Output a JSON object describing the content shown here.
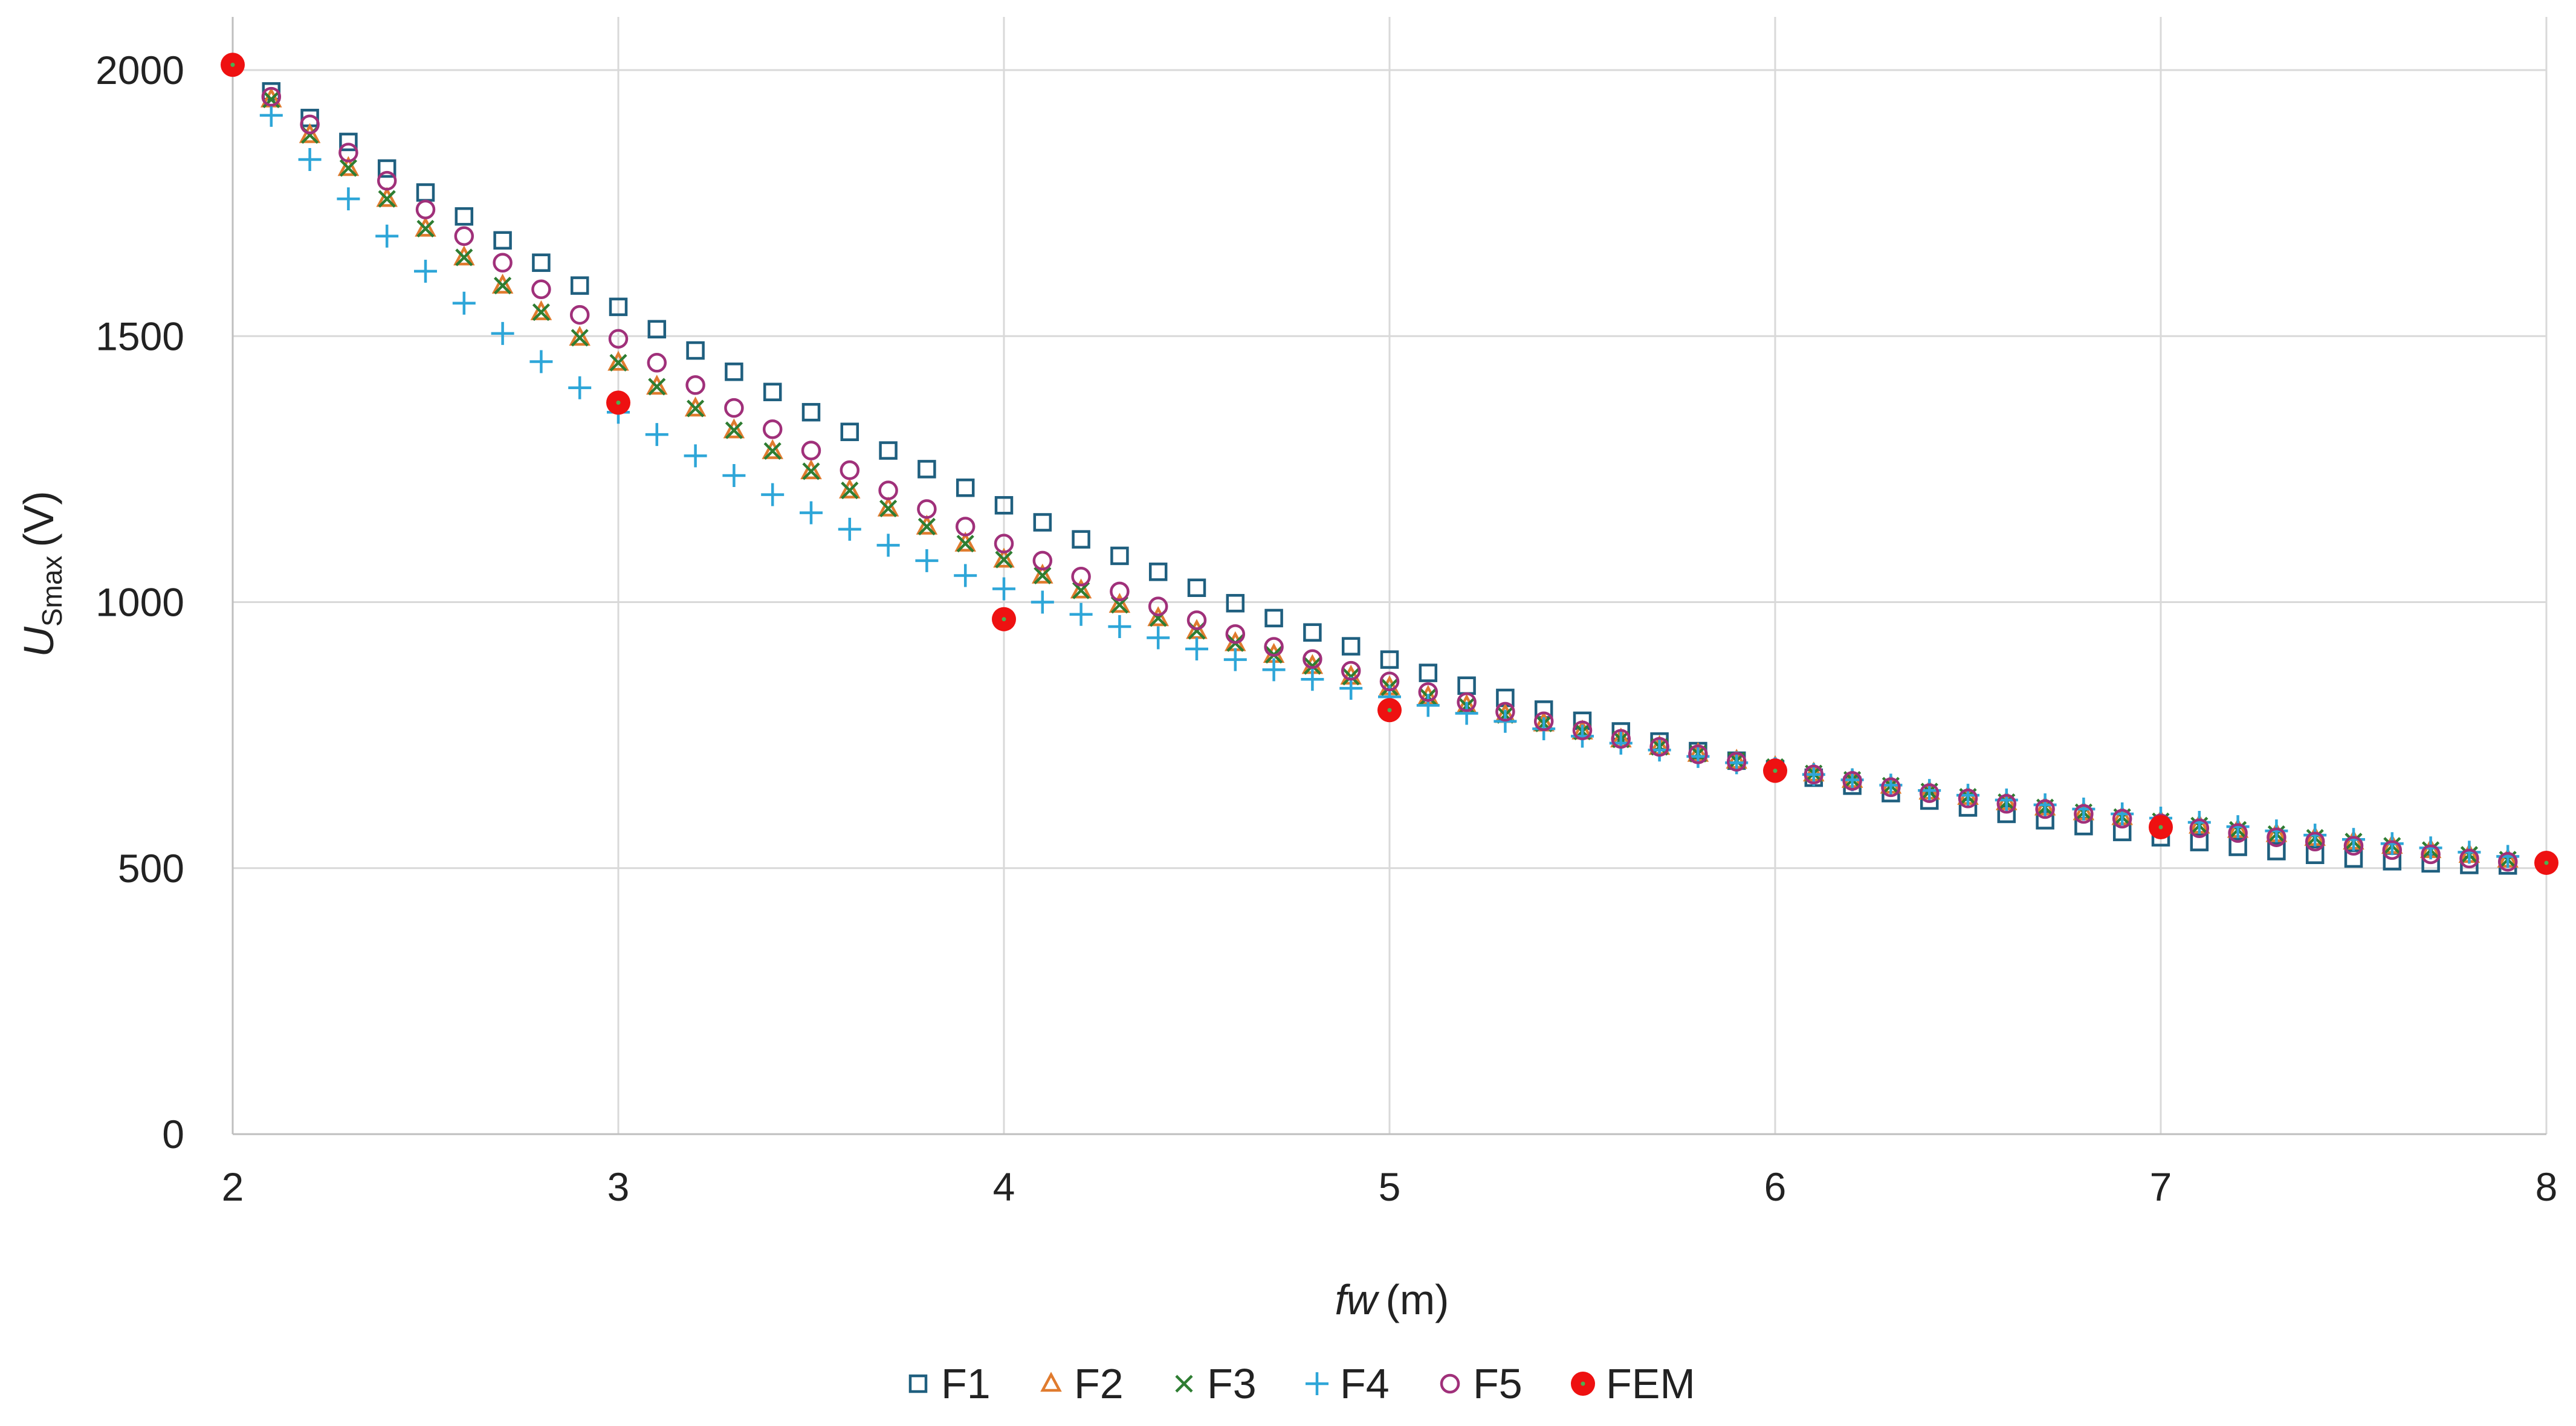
{
  "chart_data": {
    "type": "scatter",
    "title": "",
    "xlabel": {
      "italic": "fw",
      "unit": "(m)"
    },
    "ylabel": {
      "italic": "U",
      "sub": "Smax",
      "unit": "(V)"
    },
    "xlim": [
      2,
      8
    ],
    "ylim": [
      0,
      2100
    ],
    "xticks": [
      2,
      3,
      4,
      5,
      6,
      7,
      8
    ],
    "yticks": [
      0,
      500,
      1000,
      1500,
      2000
    ],
    "grid": true,
    "legend_position": "bottom",
    "colors": {
      "F1": "#1f5f7f",
      "F2": "#e07b2e",
      "F3": "#2e7d32",
      "F4": "#2ea6d8",
      "F5": "#a0307a",
      "FEM": "#ee1111",
      "FEM_center": "#4caf50",
      "grid": "#d9d9d9",
      "axis": "#bfbfbf"
    },
    "series": [
      {
        "name": "F1",
        "marker": "square",
        "x": [
          2.1,
          2.2,
          2.3,
          2.4,
          2.5,
          2.6,
          2.7,
          2.8,
          2.9,
          3.0,
          3.1,
          3.2,
          3.3,
          3.4,
          3.5,
          3.6,
          3.7,
          3.8,
          3.9,
          4.0,
          4.1,
          4.2,
          4.3,
          4.4,
          4.5,
          4.6,
          4.7,
          4.8,
          4.9,
          5.0,
          5.1,
          5.2,
          5.3,
          5.4,
          5.5,
          5.6,
          5.7,
          5.8,
          5.9,
          6.0,
          6.1,
          6.2,
          6.3,
          6.4,
          6.5,
          6.6,
          6.7,
          6.8,
          6.9,
          7.0,
          7.1,
          7.2,
          7.3,
          7.4,
          7.5,
          7.6,
          7.7,
          7.8,
          7.9
        ],
        "y": [
          1960,
          1910,
          1865,
          1815,
          1770,
          1725,
          1680,
          1638,
          1595,
          1555,
          1513,
          1473,
          1433,
          1395,
          1357,
          1320,
          1285,
          1250,
          1215,
          1182,
          1150,
          1118,
          1087,
          1057,
          1027,
          998,
          970,
          943,
          917,
          892,
          867,
          843,
          820,
          798,
          777,
          757,
          738,
          720,
          702,
          686,
          670,
          655,
          641,
          627,
          614,
          602,
          590,
          579,
          568,
          558,
          549,
          540,
          532,
          525,
          518,
          513,
          509,
          506,
          505
        ]
      },
      {
        "name": "F2",
        "marker": "triangle",
        "x": [
          2.1,
          2.2,
          2.3,
          2.4,
          2.5,
          2.6,
          2.7,
          2.8,
          2.9,
          3.0,
          3.1,
          3.2,
          3.3,
          3.4,
          3.5,
          3.6,
          3.7,
          3.8,
          3.9,
          4.0,
          4.1,
          4.2,
          4.3,
          4.4,
          4.5,
          4.6,
          4.7,
          4.8,
          4.9,
          5.0,
          5.1,
          5.2,
          5.3,
          5.4,
          5.5,
          5.6,
          5.7,
          5.8,
          5.9,
          6.0,
          6.1,
          6.2,
          6.3,
          6.4,
          6.5,
          6.6,
          6.7,
          6.8,
          6.9,
          7.0,
          7.1,
          7.2,
          7.3,
          7.4,
          7.5,
          7.6,
          7.7,
          7.8,
          7.9
        ],
        "y": [
          1945,
          1878,
          1816,
          1758,
          1702,
          1648,
          1595,
          1545,
          1497,
          1450,
          1405,
          1364,
          1323,
          1284,
          1246,
          1210,
          1176,
          1142,
          1110,
          1080,
          1050,
          1022,
          995,
          970,
          946,
          923,
          901,
          880,
          860,
          840,
          822,
          805,
          788,
          772,
          757,
          742,
          728,
          715,
          702,
          690,
          678,
          666,
          655,
          644,
          634,
          624,
          614,
          605,
          596,
          588,
          580,
          572,
          564,
          557,
          550,
          542,
          534,
          525,
          516
        ]
      },
      {
        "name": "F3",
        "marker": "x",
        "x": [
          2.1,
          2.2,
          2.3,
          2.4,
          2.5,
          2.6,
          2.7,
          2.8,
          2.9,
          3.0,
          3.1,
          3.2,
          3.3,
          3.4,
          3.5,
          3.6,
          3.7,
          3.8,
          3.9,
          4.0,
          4.1,
          4.2,
          4.3,
          4.4,
          4.5,
          4.6,
          4.7,
          4.8,
          4.9,
          5.0,
          5.1,
          5.2,
          5.3,
          5.4,
          5.5,
          5.6,
          5.7,
          5.8,
          5.9,
          6.0,
          6.1,
          6.2,
          6.3,
          6.4,
          6.5,
          6.6,
          6.7,
          6.8,
          6.9,
          7.0,
          7.1,
          7.2,
          7.3,
          7.4,
          7.5,
          7.6,
          7.7,
          7.8,
          7.9
        ],
        "y": [
          1945,
          1878,
          1816,
          1758,
          1702,
          1648,
          1595,
          1545,
          1497,
          1450,
          1405,
          1364,
          1323,
          1284,
          1246,
          1210,
          1176,
          1142,
          1110,
          1080,
          1050,
          1022,
          995,
          970,
          946,
          923,
          901,
          880,
          860,
          840,
          822,
          805,
          788,
          772,
          757,
          742,
          728,
          715,
          702,
          690,
          678,
          666,
          655,
          644,
          634,
          624,
          614,
          605,
          596,
          588,
          580,
          572,
          564,
          557,
          550,
          542,
          534,
          525,
          516
        ]
      },
      {
        "name": "F4",
        "marker": "plus",
        "x": [
          2.1,
          2.2,
          2.3,
          2.4,
          2.5,
          2.6,
          2.7,
          2.8,
          2.9,
          3.0,
          3.1,
          3.2,
          3.3,
          3.4,
          3.5,
          3.6,
          3.7,
          3.8,
          3.9,
          4.0,
          4.1,
          4.2,
          4.3,
          4.4,
          4.5,
          4.6,
          4.7,
          4.8,
          4.9,
          5.0,
          5.1,
          5.2,
          5.3,
          5.4,
          5.5,
          5.6,
          5.7,
          5.8,
          5.9,
          6.0,
          6.1,
          6.2,
          6.3,
          6.4,
          6.5,
          6.6,
          6.7,
          6.8,
          6.9,
          7.0,
          7.1,
          7.2,
          7.3,
          7.4,
          7.5,
          7.6,
          7.7,
          7.8,
          7.9
        ],
        "y": [
          1915,
          1832,
          1758,
          1688,
          1622,
          1562,
          1505,
          1452,
          1403,
          1357,
          1315,
          1275,
          1238,
          1202,
          1168,
          1137,
          1107,
          1078,
          1050,
          1025,
          1000,
          977,
          954,
          933,
          912,
          892,
          873,
          855,
          838,
          822,
          806,
          791,
          776,
          762,
          748,
          735,
          722,
          710,
          698,
          687,
          676,
          666,
          656,
          646,
          637,
          628,
          619,
          611,
          602,
          594,
          586,
          578,
          570,
          562,
          554,
          546,
          538,
          530,
          522
        ]
      },
      {
        "name": "F5",
        "marker": "circle",
        "x": [
          2.1,
          2.2,
          2.3,
          2.4,
          2.5,
          2.6,
          2.7,
          2.8,
          2.9,
          3.0,
          3.1,
          3.2,
          3.3,
          3.4,
          3.5,
          3.6,
          3.7,
          3.8,
          3.9,
          4.0,
          4.1,
          4.2,
          4.3,
          4.4,
          4.5,
          4.6,
          4.7,
          4.8,
          4.9,
          5.0,
          5.1,
          5.2,
          5.3,
          5.4,
          5.5,
          5.6,
          5.7,
          5.8,
          5.9,
          6.0,
          6.1,
          6.2,
          6.3,
          6.4,
          6.5,
          6.6,
          6.7,
          6.8,
          6.9,
          7.0,
          7.1,
          7.2,
          7.3,
          7.4,
          7.5,
          7.6,
          7.7,
          7.8,
          7.9
        ],
        "y": [
          1950,
          1898,
          1845,
          1792,
          1738,
          1688,
          1638,
          1588,
          1540,
          1495,
          1450,
          1408,
          1365,
          1325,
          1285,
          1248,
          1210,
          1175,
          1142,
          1110,
          1078,
          1048,
          1020,
          992,
          966,
          940,
          916,
          893,
          871,
          851,
          831,
          812,
          794,
          776,
          759,
          743,
          728,
          714,
          700,
          688,
          676,
          664,
          652,
          641,
          631,
          621,
          611,
          602,
          593,
          584,
          575,
          566,
          558,
          550,
          542,
          534,
          526,
          518,
          512
        ]
      },
      {
        "name": "FEM",
        "marker": "dot",
        "x": [
          2,
          3,
          4,
          5,
          6,
          7,
          8
        ],
        "y": [
          2010,
          1375,
          968,
          797,
          683,
          577,
          510
        ]
      }
    ],
    "legend": [
      "F1",
      "F2",
      "F3",
      "F4",
      "F5",
      "FEM"
    ]
  }
}
